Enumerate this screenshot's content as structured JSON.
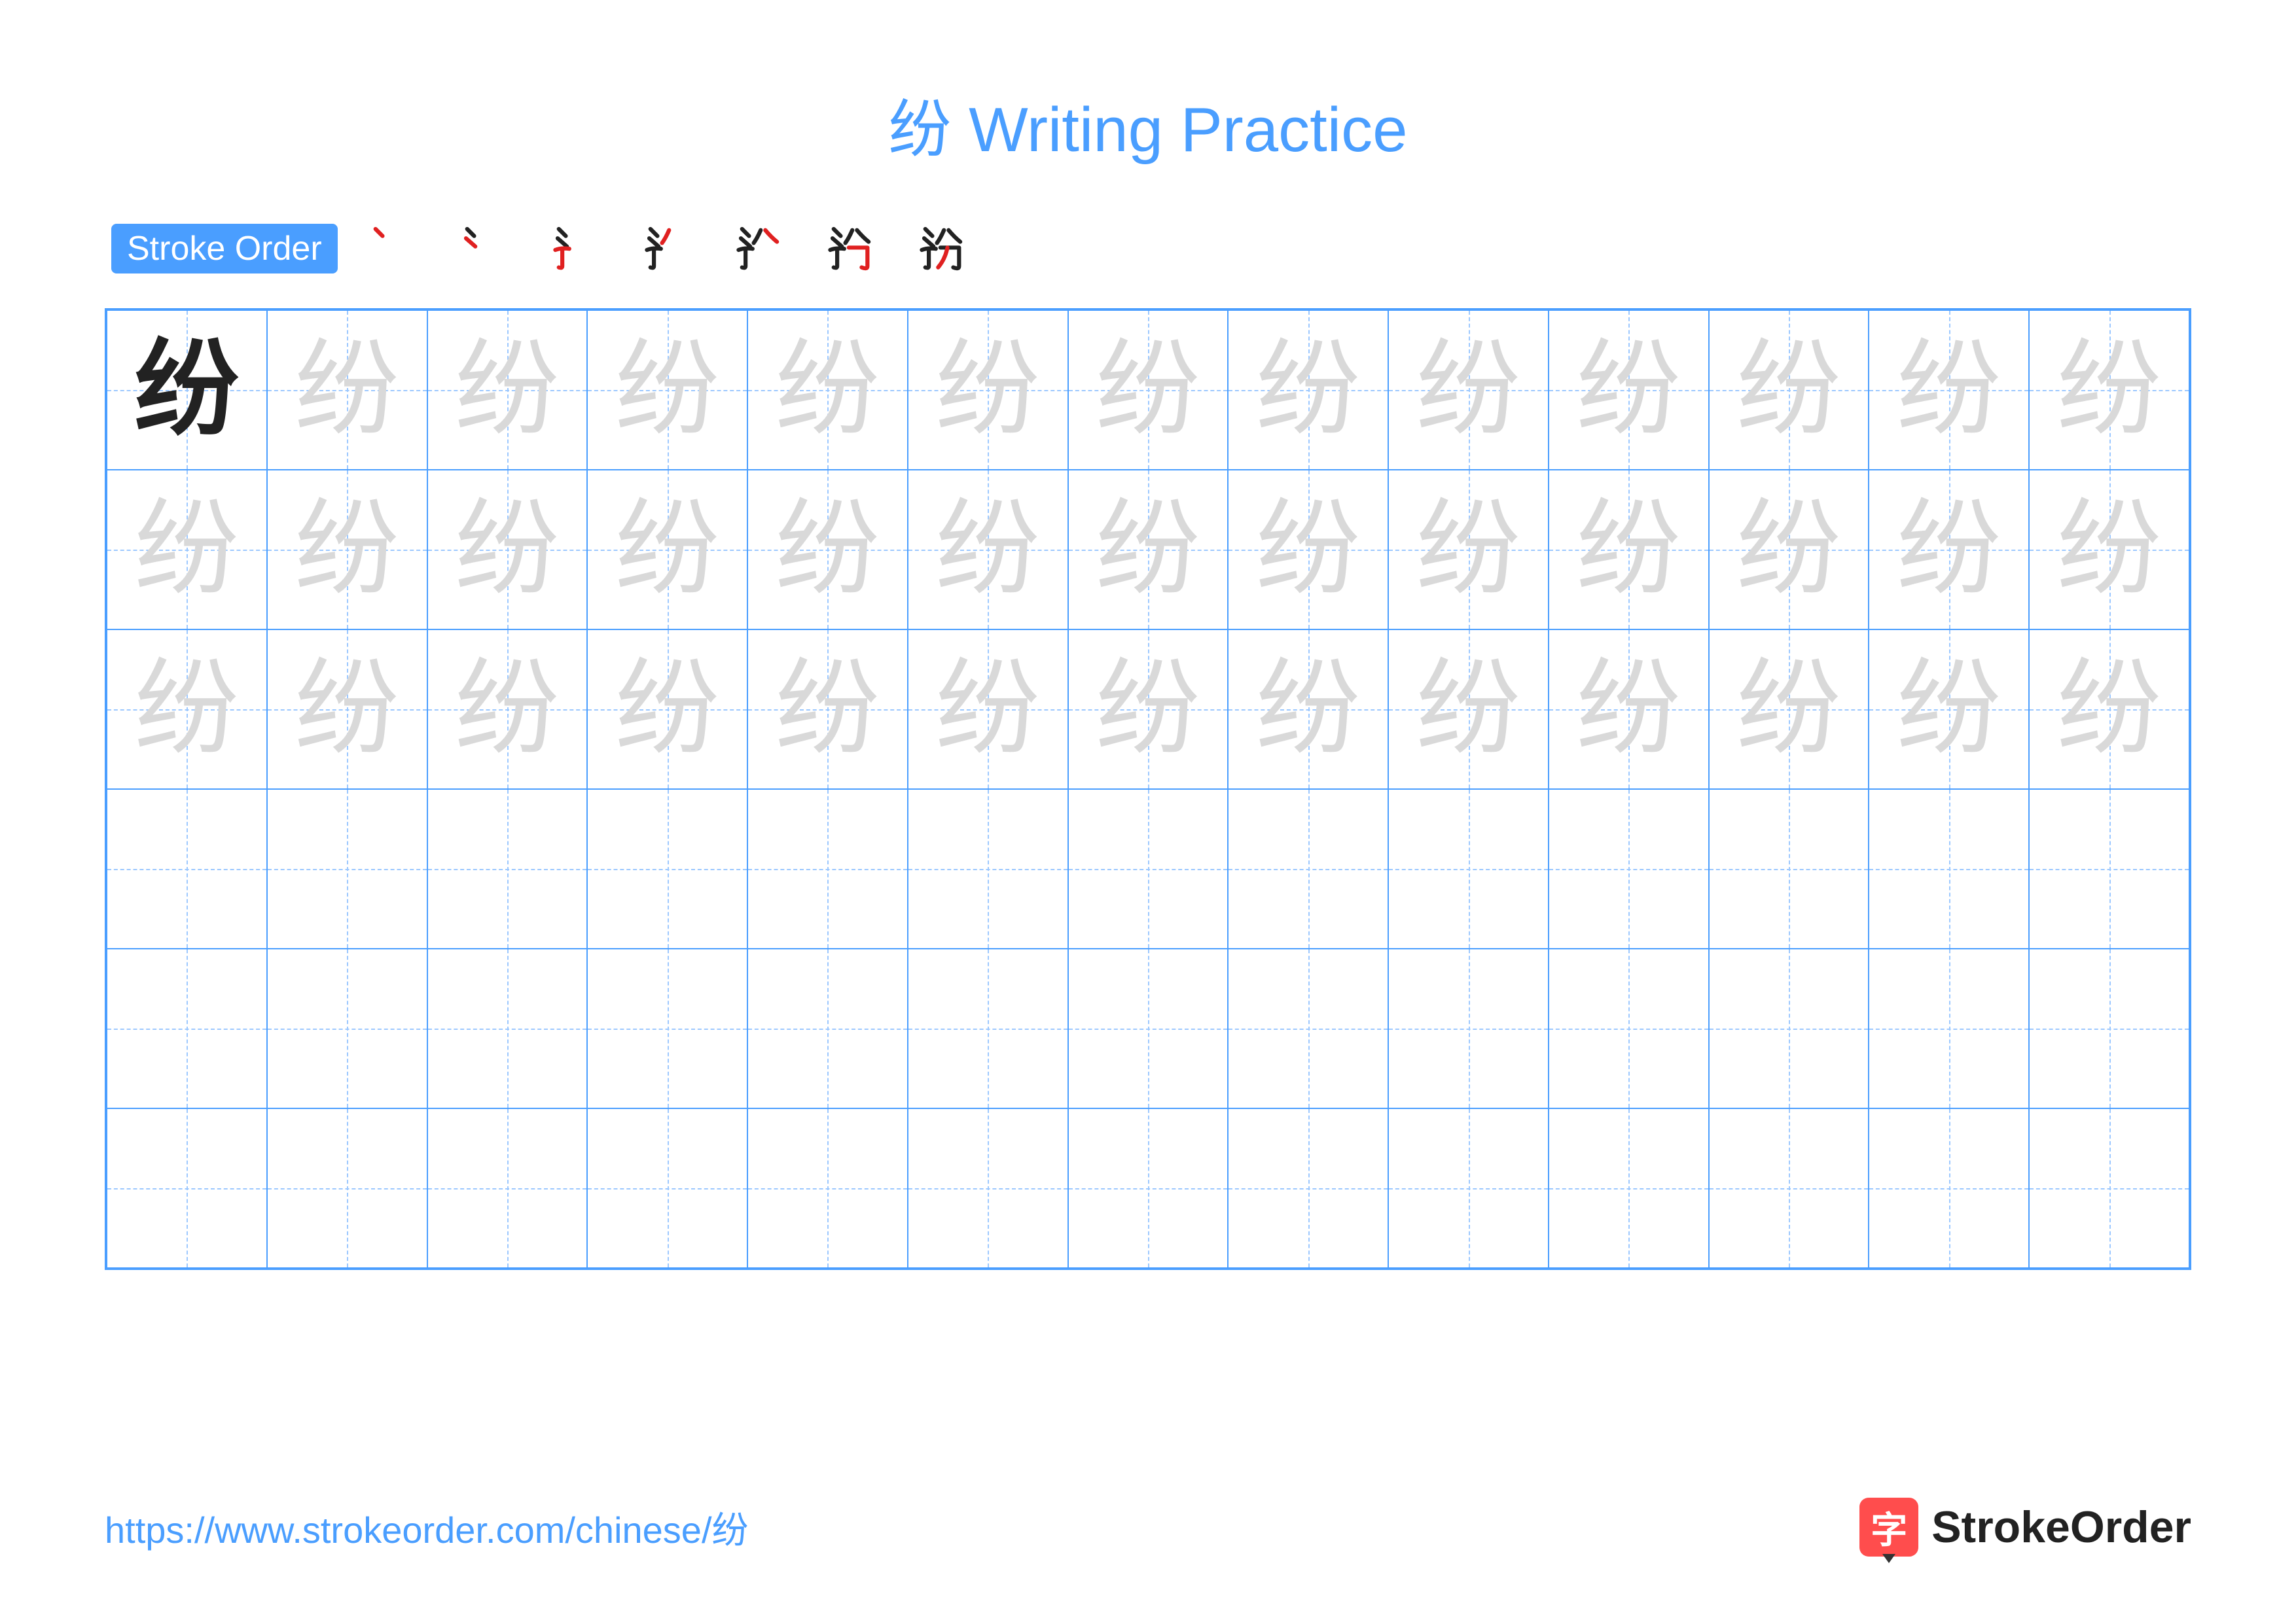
{
  "title_color": "#4a9eff",
  "character": "纷",
  "title": "纷 Writing Practice",
  "stroke_label": "Stroke Order",
  "stroke_count": 7,
  "grid": {
    "cols": 13,
    "rows": 6,
    "trace_rows": 3,
    "border_color": "#4a9eff",
    "guide_color": "#9cc8ff",
    "solid_color": "#222222",
    "trace_color": "#d9d9d9"
  },
  "footer_url": "https://www.strokeorder.com/chinese/纷",
  "footer_url_color": "#4a9eff",
  "brand_name": "StrokeOrder",
  "brand_icon_char": "字",
  "brand_icon_bg": "#ff4d4d"
}
